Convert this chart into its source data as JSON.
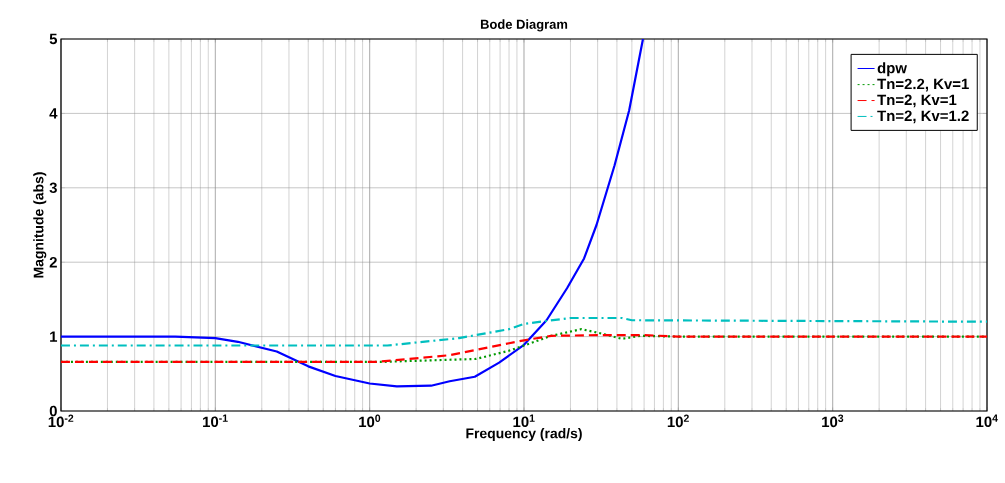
{
  "chart_data": {
    "type": "line",
    "title": "Bode Diagram",
    "xlabel": "Frequency  (rad/s)",
    "ylabel": "Magnitude (abs)",
    "log": "x",
    "grid": true,
    "legend": "top right",
    "xlim": [
      0.01,
      10000
    ],
    "ylim": [
      0,
      5
    ],
    "xticks": [
      {
        "value": 0.01,
        "label": "10$^{-2}$"
      },
      {
        "value": 0.1,
        "label": "10$^{-1}$"
      },
      {
        "value": 1,
        "label": "10$^{0}$"
      },
      {
        "value": 10,
        "label": "10$^{1}$"
      },
      {
        "value": 100,
        "label": "10$^{2}$"
      },
      {
        "value": 1000,
        "label": "10$^{3}$"
      },
      {
        "value": 10000,
        "label": "10$^{4}$"
      }
    ],
    "yticks": [
      0,
      1,
      2,
      3,
      4,
      5
    ],
    "series": [
      {
        "name": "dpw",
        "color": "#0000ff",
        "line_style": "solid",
        "x": [
          0.01,
          0.055,
          0.1,
          0.14,
          0.25,
          0.4,
          0.6,
          1.0,
          1.5,
          2.5,
          3.3,
          4.8,
          6.9,
          10,
          14,
          19,
          24.5,
          29.5,
          38.6,
          48,
          59
        ],
        "values": [
          1.0,
          1.0,
          0.98,
          0.93,
          0.8,
          0.6,
          0.47,
          0.37,
          0.33,
          0.34,
          0.4,
          0.46,
          0.65,
          0.89,
          1.22,
          1.65,
          2.05,
          2.5,
          3.3,
          4.04,
          5.0
        ]
      },
      {
        "name": "Tn=2.2, Kv=1",
        "color": "#009900",
        "line_style": "dotted",
        "x": [
          0.01,
          1.2,
          4.9,
          8,
          10,
          15,
          23.5,
          32,
          43,
          57,
          100,
          10000
        ],
        "values": [
          0.66,
          0.66,
          0.7,
          0.81,
          0.88,
          1.01,
          1.1,
          1.04,
          0.97,
          1.01,
          1.0,
          1.0
        ]
      },
      {
        "name": "Tn=2, Kv=1",
        "color": "#ff0000",
        "line_style": "dashed",
        "x": [
          0.01,
          1.1,
          3.3,
          8,
          10,
          15,
          30,
          60,
          100,
          10000
        ],
        "values": [
          0.66,
          0.66,
          0.75,
          0.91,
          0.95,
          1.01,
          1.02,
          1.02,
          1.0,
          1.0
        ]
      },
      {
        "name": "Tn=2, Kv=1.2",
        "color": "#00bfbf",
        "line_style": "dashdot",
        "x": [
          0.01,
          1.3,
          3.8,
          8,
          10,
          14,
          20,
          43,
          50,
          10000
        ],
        "values": [
          0.88,
          0.88,
          0.98,
          1.1,
          1.17,
          1.21,
          1.25,
          1.25,
          1.22,
          1.2
        ]
      }
    ]
  }
}
